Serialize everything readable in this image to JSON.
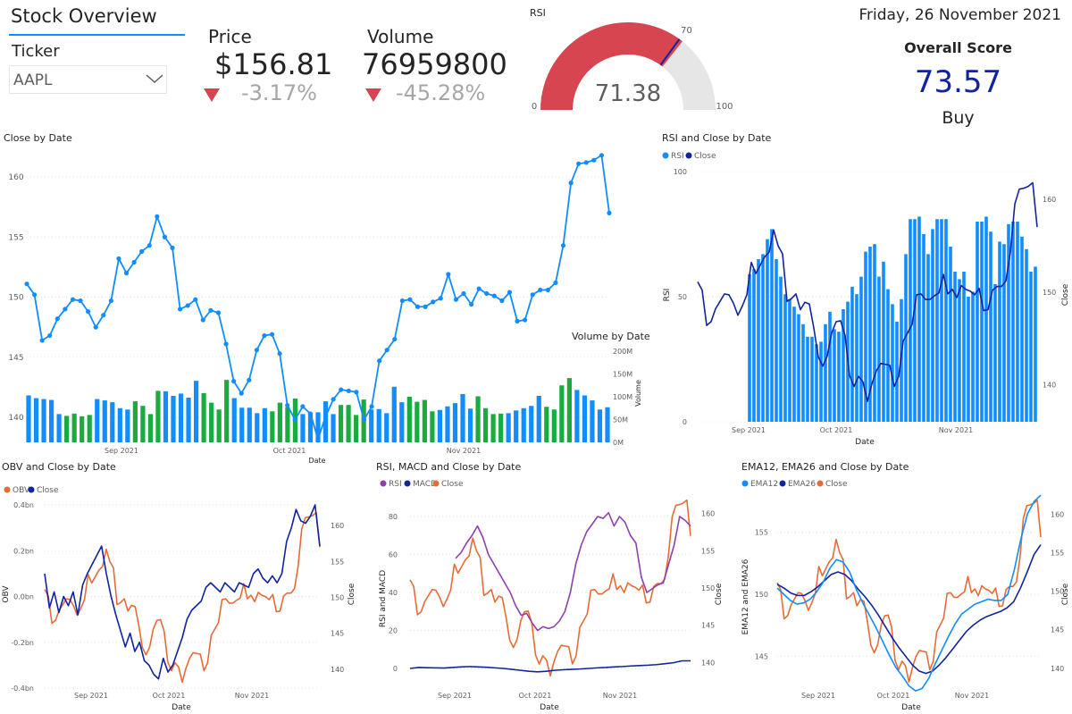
{
  "header": {
    "title": "Stock Overview",
    "ticker_label": "Ticker",
    "ticker_value": "AAPL"
  },
  "price_card": {
    "label": "Price",
    "value": "$156.81",
    "change": "-3.17%"
  },
  "volume_card": {
    "label": "Volume",
    "value": "76959800",
    "change": "-45.28%"
  },
  "rsi_gauge": {
    "title": "RSI",
    "value": 71.38,
    "value_label": "71.38",
    "min": 0,
    "max": 100,
    "target": 70,
    "min_label": "0",
    "max_label": "100",
    "target_label": "70"
  },
  "date_display": "Friday, 26 November 2021",
  "score": {
    "label": "Overall Score",
    "value": "73.57",
    "recommendation": "Buy"
  },
  "colors": {
    "blue": "#118DFF",
    "navy": "#12239E",
    "orange": "#E66C37",
    "purple": "#8F3FAA",
    "green": "#1AAB40",
    "red": "#D64550",
    "gauge_track": "#E6E6E6"
  },
  "chart_data": [
    {
      "id": "close_by_date",
      "type": "line",
      "title": "Close by Date",
      "x_ticks": [
        "Sep 2021",
        "Oct 2021",
        "Nov 2021"
      ],
      "y_ticks": [
        "140",
        "145",
        "150",
        "155",
        "160"
      ],
      "ylim": [
        138,
        161
      ],
      "grid": true,
      "series": [
        {
          "name": "Close",
          "values": [
            151.1,
            150.2,
            146.4,
            146.8,
            148.2,
            149,
            149.8,
            149.7,
            148.8,
            147.5,
            148.5,
            149.7,
            153.2,
            152,
            152.9,
            153.8,
            154.3,
            156.7,
            155,
            154.1,
            149,
            149.3,
            149.8,
            148.1,
            148.9,
            148.7,
            146.1,
            143,
            142,
            143.1,
            145.6,
            146.8,
            146.9,
            145.3,
            141,
            139.8,
            140.9,
            140.3,
            138.2,
            140.1,
            141.5,
            142.3,
            142.2,
            142.1,
            139.8,
            140.9,
            144.7,
            145.6,
            146.5,
            149.7,
            149.8,
            149.2,
            149.2,
            149.6,
            149.9,
            151.9,
            149.8,
            150.3,
            149.4,
            150.7,
            150.3,
            150.1,
            149.7,
            150.4,
            148,
            148.1,
            150.2,
            150.6,
            150.6,
            151.2,
            154.3,
            159.5,
            161.1,
            161.2,
            161.4,
            161.8,
            157
          ]
        }
      ]
    },
    {
      "id": "volume_by_date",
      "type": "bar",
      "title": "Volume by Date",
      "y_ticks": [
        "0M",
        "50M",
        "100M",
        "150M",
        "200M"
      ],
      "ylabel": "Volume",
      "xlabel": "Date",
      "ylim": [
        0,
        200
      ],
      "series": [
        {
          "name": "Volume",
          "values": [
            103,
            97,
            95,
            93,
            62,
            58,
            63,
            57,
            60,
            95,
            92,
            88,
            75,
            72,
            90,
            80,
            62,
            113,
            112,
            102,
            107,
            98,
            135,
            108,
            87,
            72,
            137,
            97,
            76,
            76,
            64,
            75,
            68,
            87,
            77,
            96,
            62,
            65,
            66,
            90,
            62,
            82,
            82,
            60,
            94,
            72,
            73,
            64,
            122,
            88,
            100,
            89,
            93,
            68,
            71,
            79,
            86,
            106,
            74,
            101,
            75,
            62,
            63,
            64,
            70,
            75,
            80,
            102,
            78,
            72,
            125,
            141,
            115,
            103,
            92,
            72,
            77
          ]
        }
      ]
    },
    {
      "id": "rsi_and_close",
      "type": "bar",
      "title": "RSI and Close by Date",
      "legend": [
        "RSI",
        "Close"
      ],
      "legend_position": "top-left",
      "x_ticks": [
        "Sep 2021",
        "Oct 2021",
        "Nov 2021"
      ],
      "y_ticks_left": [
        "0",
        "50",
        "100"
      ],
      "y_ticks_right": [
        "140",
        "150",
        "160"
      ],
      "ylabel": "RSI",
      "y2label": "Close",
      "xlabel": "Date",
      "series": [
        {
          "name": "RSI",
          "values": [
            59,
            61,
            65,
            67,
            73,
            77,
            65,
            58,
            51,
            49,
            46,
            43,
            39,
            34,
            34,
            31,
            32,
            39,
            44,
            37,
            36,
            45,
            48,
            54,
            51,
            58,
            68,
            70,
            71,
            58,
            64,
            53,
            47,
            40,
            49,
            67,
            81,
            81,
            82,
            75,
            67,
            77,
            81,
            81,
            81,
            70,
            60,
            57,
            60,
            50,
            52,
            80,
            80,
            82,
            76,
            55,
            72,
            71,
            79,
            80,
            80,
            74,
            69,
            60,
            62
          ]
        },
        {
          "name": "Close",
          "values": [
            151.1,
            150.2,
            146.4,
            146.8,
            148.2,
            149,
            149.8,
            149.7,
            148.8,
            147.5,
            148.5,
            149.7,
            153.2,
            152,
            152.9,
            153.8,
            154.3,
            156.7,
            155,
            154.1,
            149,
            149.3,
            149.8,
            148.1,
            148.9,
            148.7,
            146.1,
            143,
            142,
            143.1,
            145.6,
            146.8,
            146.9,
            145.3,
            141,
            139.8,
            140.9,
            140.3,
            138.2,
            140.1,
            141.5,
            142.3,
            142.2,
            142.1,
            139.8,
            140.9,
            144.7,
            145.6,
            146.5,
            149.7,
            149.8,
            149.2,
            149.2,
            149.6,
            149.9,
            151.9,
            149.8,
            150.3,
            149.4,
            150.7,
            150.3,
            150.1,
            149.7,
            150.4,
            148,
            148.1,
            150.2,
            150.6,
            150.6,
            151.2,
            154.3,
            159.5,
            161.1,
            161.2,
            161.4,
            161.8,
            157
          ]
        }
      ]
    },
    {
      "id": "obv_and_close",
      "type": "line",
      "title": "OBV and Close by Date",
      "legend": [
        "OBV",
        "Close"
      ],
      "legend_position": "top-left",
      "x_ticks": [
        "Sep 2021",
        "Oct 2021",
        "Nov 2021"
      ],
      "y_ticks_left": [
        "-0.4bn",
        "-0.2bn",
        "0.0bn",
        "0.2bn",
        "0.4bn"
      ],
      "y_ticks_right": [
        "140",
        "145",
        "150",
        "155",
        "160"
      ],
      "ylabel": "OBV",
      "y2label": "Close",
      "xlabel": "Date",
      "series": [
        {
          "name": "OBV",
          "values": [
            0.1,
            -0.05,
            0.02,
            -0.07,
            0.0,
            -0.04,
            0.02,
            -0.08,
            0.05,
            0.1,
            0.14,
            0.18,
            0.22,
            0.1,
            0.0,
            -0.08,
            -0.15,
            -0.22,
            -0.16,
            -0.24,
            -0.2,
            -0.28,
            -0.3,
            -0.34,
            -0.36,
            -0.27,
            -0.33,
            -0.3,
            -0.24,
            -0.18,
            -0.1,
            -0.06,
            -0.04,
            -0.02,
            0.04,
            0.06,
            0.04,
            0.02,
            0.06,
            0.04,
            0.02,
            0.06,
            0.05,
            0.04,
            0.1,
            0.12,
            0.08,
            0.06,
            0.09,
            0.06,
            0.1,
            0.24,
            0.3,
            0.38,
            0.33,
            0.32,
            0.35,
            0.4,
            0.22
          ]
        },
        {
          "name": "Close",
          "values": [
            151.1,
            150.2,
            146.4,
            146.8,
            148.2,
            149,
            149.8,
            149.7,
            148.8,
            147.5,
            148.5,
            149.7,
            153.2,
            152,
            152.9,
            153.8,
            154.3,
            156.7,
            155,
            154.1,
            149,
            149.3,
            149.8,
            148.1,
            148.9,
            148.7,
            146.1,
            143,
            142,
            143.1,
            145.6,
            146.8,
            146.9,
            145.3,
            141,
            139.8,
            140.9,
            140.3,
            138.2,
            140.1,
            141.5,
            142.3,
            142.2,
            142.1,
            139.8,
            140.9,
            144.7,
            145.6,
            146.5,
            149.7,
            149.8,
            149.2,
            149.2,
            149.6,
            149.9,
            151.9,
            149.8,
            150.3,
            149.4,
            150.7,
            150.3,
            150.1,
            149.7,
            150.4,
            148,
            148.1,
            150.2,
            150.6,
            150.6,
            151.2,
            154.3,
            159.5,
            161.1,
            161.2,
            161.4,
            161.8,
            157
          ]
        }
      ]
    },
    {
      "id": "rsi_macd_close",
      "type": "line",
      "title": "RSI, MACD and Close by Date",
      "legend": [
        "RSI",
        "MACD",
        "Close"
      ],
      "legend_position": "top-left",
      "x_ticks": [
        "Sep 2021",
        "Oct 2021",
        "Nov 2021"
      ],
      "y_ticks_left": [
        "0",
        "20",
        "40",
        "60",
        "80"
      ],
      "y_ticks_right": [
        "140",
        "145",
        "150",
        "155",
        "160"
      ],
      "ylabel": "RSI and MACD",
      "y2label": "Close",
      "xlabel": "Date",
      "series": [
        {
          "name": "RSI",
          "values": [
            58,
            61,
            66,
            70,
            75,
            69,
            60,
            55,
            50,
            45,
            40,
            33,
            28,
            29,
            24,
            20,
            22,
            21,
            22,
            25,
            30,
            40,
            55,
            65,
            72,
            76,
            80,
            79,
            82,
            75,
            80,
            77,
            70,
            66,
            48,
            40,
            42,
            44,
            45,
            55,
            65,
            80,
            78,
            75
          ]
        },
        {
          "name": "MACD",
          "values": [
            0,
            0.5,
            0.4,
            0.3,
            0.2,
            0.5,
            0.8,
            1,
            0.8,
            0.6,
            0.3,
            0,
            -0.5,
            -1,
            -1.5,
            -1.8,
            -1.5,
            -1,
            -0.7,
            -0.5,
            -0.3,
            0,
            0.3,
            0.5,
            0.8,
            1,
            1.3,
            1.5,
            1.7,
            2,
            2.5,
            3,
            4,
            4
          ]
        },
        {
          "name": "Close",
          "values": [
            151.1,
            150.2,
            146.4,
            146.8,
            148.2,
            149,
            149.8,
            149.7,
            148.8,
            147.5,
            148.5,
            149.7,
            153.2,
            152,
            152.9,
            153.8,
            154.3,
            156.7,
            155,
            154.1,
            149,
            149.3,
            149.8,
            148.1,
            148.9,
            148.7,
            146.1,
            143,
            142,
            143.1,
            145.6,
            146.8,
            146.9,
            145.3,
            141,
            139.8,
            140.9,
            140.3,
            138.2,
            140.1,
            141.5,
            142.3,
            142.2,
            142.1,
            139.8,
            140.9,
            144.7,
            145.6,
            146.5,
            149.7,
            149.8,
            149.2,
            149.2,
            149.6,
            149.9,
            151.9,
            149.8,
            150.3,
            149.4,
            150.7,
            150.3,
            150.1,
            149.7,
            150.4,
            148,
            148.1,
            150.2,
            150.6,
            150.6,
            151.2,
            154.3,
            159.5,
            161.1,
            161.2,
            161.4,
            161.8,
            157
          ]
        }
      ]
    },
    {
      "id": "ema_close",
      "type": "line",
      "title": "EMA12, EMA26 and Close by Date",
      "legend": [
        "EMA12",
        "EMA26",
        "Close"
      ],
      "legend_position": "top-left",
      "x_ticks": [
        "Sep 2021",
        "Oct 2021",
        "Nov 2021"
      ],
      "y_ticks_left": [
        "145",
        "150",
        "155"
      ],
      "y_ticks_right": [
        "140",
        "145",
        "150",
        "155",
        "160"
      ],
      "ylabel": "EMA12 and EMA26",
      "y2label": "Close",
      "xlabel": "Date",
      "series": [
        {
          "name": "EMA12",
          "values": [
            150.5,
            150,
            149.5,
            149.2,
            149.3,
            149.6,
            150.2,
            151,
            152.1,
            152.8,
            152.6,
            151.8,
            150.4,
            149.3,
            148.3,
            147.3,
            146.2,
            145.1,
            144.1,
            143.4,
            142.6,
            142.2,
            142.4,
            143.2,
            144.4,
            145.5,
            146.6,
            147.6,
            148.4,
            148.8,
            149.2,
            149.4,
            149.6,
            149.5,
            149.5,
            150,
            152,
            154.5,
            156.5,
            157.5,
            158
          ]
        },
        {
          "name": "EMA26",
          "values": [
            150.8,
            150.5,
            150.1,
            149.9,
            149.9,
            150.2,
            150.6,
            151.1,
            151.6,
            151.8,
            151.6,
            151.1,
            150.4,
            149.8,
            149.1,
            148.3,
            147.4,
            146.5,
            145.7,
            145,
            144.3,
            143.8,
            143.6,
            143.8,
            144.3,
            144.9,
            145.6,
            146.3,
            147,
            147.5,
            147.9,
            148.2,
            148.4,
            148.6,
            148.9,
            149.4,
            150.5,
            151.8,
            153.2,
            154
          ]
        },
        {
          "name": "Close",
          "values": [
            151.1,
            150.2,
            146.4,
            146.8,
            148.2,
            149,
            149.8,
            149.7,
            148.8,
            147.5,
            148.5,
            149.7,
            153.2,
            152,
            152.9,
            153.8,
            154.3,
            156.7,
            155,
            154.1,
            149,
            149.3,
            149.8,
            148.1,
            148.9,
            148.7,
            146.1,
            143,
            142,
            143.1,
            145.6,
            146.8,
            146.9,
            145.3,
            141,
            139.8,
            140.9,
            140.3,
            138.2,
            140.1,
            141.5,
            142.3,
            142.2,
            142.1,
            139.8,
            140.9,
            144.7,
            145.6,
            146.5,
            149.7,
            149.8,
            149.2,
            149.2,
            149.6,
            149.9,
            151.9,
            149.8,
            150.3,
            149.4,
            150.7,
            150.3,
            150.1,
            149.7,
            150.4,
            148,
            148.1,
            150.2,
            150.6,
            150.6,
            151.2,
            154.3,
            159.5,
            161.1,
            161.2,
            161.4,
            161.8,
            157
          ]
        }
      ]
    }
  ]
}
